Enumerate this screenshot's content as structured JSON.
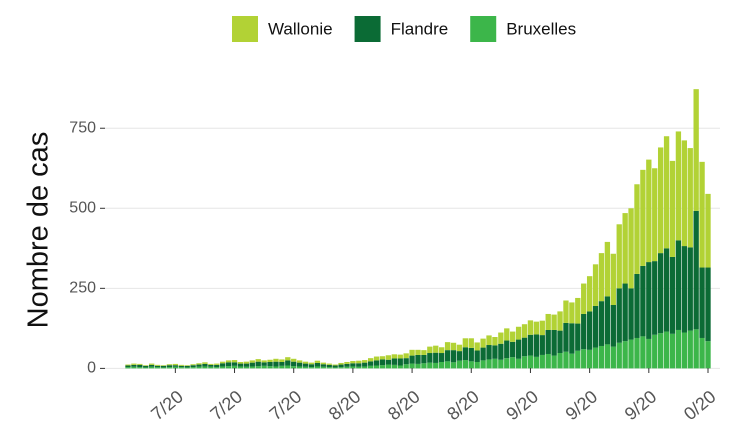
{
  "chart_data": {
    "type": "stacked_bar",
    "y_label": "Nombre de cas",
    "categories": [
      null,
      null,
      null,
      null,
      null,
      null,
      null,
      null,
      "7/20",
      null,
      null,
      null,
      null,
      null,
      null,
      null,
      null,
      null,
      "7/20",
      null,
      null,
      null,
      null,
      null,
      null,
      null,
      null,
      null,
      "7/20",
      null,
      null,
      null,
      null,
      null,
      null,
      null,
      null,
      null,
      "8/20",
      null,
      null,
      null,
      null,
      null,
      null,
      null,
      null,
      null,
      "8/20",
      null,
      null,
      null,
      null,
      null,
      null,
      null,
      null,
      null,
      "8/20",
      null,
      null,
      null,
      null,
      null,
      null,
      null,
      null,
      null,
      "9/20",
      null,
      null,
      null,
      null,
      null,
      null,
      null,
      null,
      null,
      "9/20",
      null,
      null,
      null,
      null,
      null,
      null,
      null,
      null,
      null,
      "9/20",
      null,
      null,
      null,
      null,
      null,
      null,
      null,
      null,
      null,
      "0/20"
    ],
    "series": [
      {
        "name": "Bruxelles",
        "color": "#3cb64a",
        "values": [
          4,
          5,
          4,
          3,
          5,
          4,
          3,
          4,
          5,
          4,
          3,
          4,
          5,
          6,
          5,
          4,
          6,
          7,
          8,
          6,
          5,
          6,
          7,
          8,
          7,
          6,
          8,
          9,
          7,
          6,
          5,
          4,
          6,
          5,
          4,
          3,
          4,
          5,
          6,
          5,
          6,
          8,
          9,
          10,
          12,
          11,
          9,
          13,
          15,
          14,
          16,
          18,
          17,
          20,
          22,
          19,
          24,
          26,
          22,
          20,
          25,
          28,
          30,
          27,
          32,
          35,
          30,
          38,
          40,
          36,
          42,
          45,
          40,
          48,
          52,
          46,
          55,
          60,
          58,
          65,
          70,
          75,
          68,
          80,
          85,
          90,
          95,
          100,
          92,
          105,
          110,
          115,
          108,
          120,
          112,
          118,
          122,
          95,
          85
        ]
      },
      {
        "name": "Flandre",
        "color": "#0b6b35",
        "values": [
          5,
          6,
          7,
          5,
          6,
          4,
          5,
          6,
          5,
          4,
          5,
          6,
          7,
          8,
          6,
          7,
          10,
          12,
          11,
          9,
          10,
          12,
          14,
          11,
          13,
          15,
          12,
          16,
          14,
          12,
          10,
          9,
          11,
          8,
          7,
          6,
          8,
          9,
          10,
          11,
          12,
          14,
          16,
          18,
          15,
          20,
          22,
          19,
          25,
          28,
          26,
          30,
          32,
          28,
          35,
          38,
          30,
          40,
          42,
          36,
          40,
          45,
          42,
          50,
          55,
          48,
          60,
          58,
          65,
          70,
          62,
          75,
          80,
          70,
          90,
          95,
          85,
          110,
          120,
          130,
          140,
          150,
          130,
          170,
          180,
          160,
          200,
          220,
          240,
          230,
          250,
          260,
          240,
          280,
          270,
          260,
          370,
          220,
          230
        ]
      },
      {
        "name": "Wallonie",
        "color": "#b2d235",
        "values": [
          3,
          4,
          3,
          2,
          4,
          3,
          2,
          3,
          4,
          3,
          2,
          3,
          4,
          5,
          3,
          4,
          5,
          6,
          7,
          5,
          6,
          7,
          8,
          6,
          7,
          9,
          8,
          10,
          9,
          7,
          6,
          5,
          7,
          5,
          4,
          3,
          5,
          6,
          7,
          8,
          8,
          10,
          12,
          10,
          14,
          13,
          12,
          15,
          18,
          16,
          15,
          20,
          22,
          18,
          25,
          23,
          20,
          28,
          30,
          25,
          28,
          30,
          26,
          35,
          38,
          32,
          40,
          42,
          45,
          40,
          45,
          50,
          48,
          60,
          70,
          65,
          80,
          95,
          110,
          130,
          150,
          170,
          160,
          200,
          220,
          250,
          280,
          300,
          320,
          290,
          330,
          350,
          300,
          340,
          330,
          310,
          380,
          330,
          230
        ]
      }
    ],
    "legend_order": [
      "Wallonie",
      "Flandre",
      "Bruxelles"
    ],
    "ylim": [
      -30,
      885
    ],
    "yticks": [
      0,
      250,
      500,
      750
    ],
    "grid": true
  }
}
